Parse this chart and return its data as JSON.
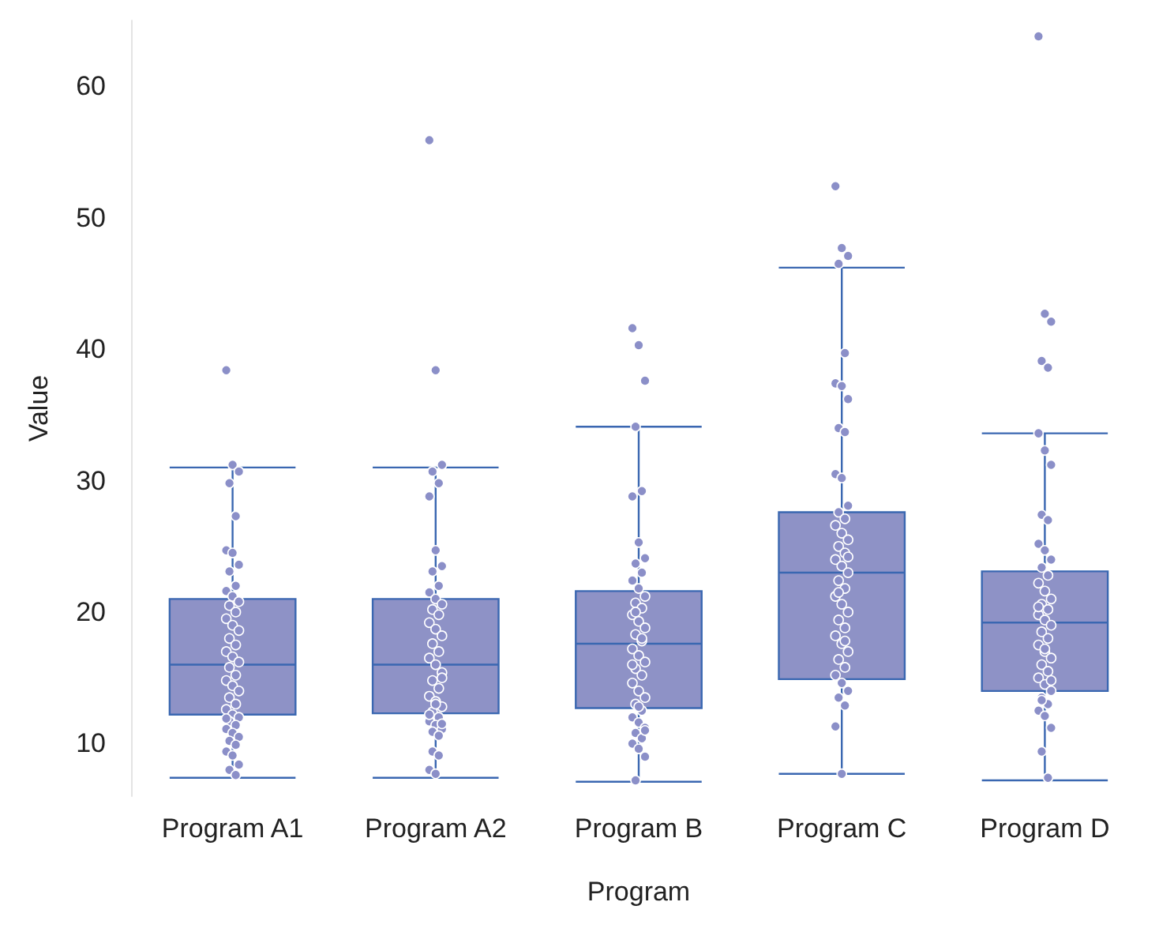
{
  "chart_data": {
    "type": "box",
    "xlabel": "Program",
    "ylabel": "Value",
    "categories": [
      "Program A1",
      "Program A2",
      "Program B",
      "Program C",
      "Program D"
    ],
    "ylim": [
      6,
      65
    ],
    "yticks": [
      10,
      20,
      30,
      40,
      50,
      60
    ],
    "grid": false,
    "series": [
      {
        "color": "#8e92c6",
        "boxes": [
          {
            "low": 7.4,
            "q1": 12.2,
            "median": 16.0,
            "q3": 21.0,
            "high": 31.0
          },
          {
            "low": 7.4,
            "q1": 12.3,
            "median": 16.0,
            "q3": 21.0,
            "high": 31.0
          },
          {
            "low": 7.1,
            "q1": 12.7,
            "median": 17.6,
            "q3": 21.6,
            "high": 34.1
          },
          {
            "low": 7.7,
            "q1": 14.9,
            "median": 23.0,
            "q3": 27.6,
            "high": 46.2
          },
          {
            "low": 7.2,
            "q1": 14.0,
            "median": 19.2,
            "q3": 23.1,
            "high": 33.6
          }
        ]
      },
      {
        "type": "scatter",
        "color": "#8b8fc8",
        "marker": "circle",
        "x": [
          "Program A1",
          "Program A1",
          "Program A1",
          "Program A1",
          "Program A1",
          "Program A1",
          "Program A1",
          "Program A1",
          "Program A1",
          "Program A1",
          "Program A1",
          "Program A1",
          "Program A1",
          "Program A1",
          "Program A1",
          "Program A1",
          "Program A1",
          "Program A1",
          "Program A1",
          "Program A1",
          "Program A1",
          "Program A1",
          "Program A1",
          "Program A1",
          "Program A1",
          "Program A1",
          "Program A1",
          "Program A1",
          "Program A1",
          "Program A1",
          "Program A1",
          "Program A1",
          "Program A1",
          "Program A1",
          "Program A1",
          "Program A1",
          "Program A1",
          "Program A1",
          "Program A1",
          "Program A1",
          "Program A1",
          "Program A1",
          "Program A1",
          "Program A1",
          "Program A1",
          "Program A1",
          "Program A2",
          "Program A2",
          "Program A2",
          "Program A2",
          "Program A2",
          "Program A2",
          "Program A2",
          "Program A2",
          "Program A2",
          "Program A2",
          "Program A2",
          "Program A2",
          "Program A2",
          "Program A2",
          "Program A2",
          "Program A2",
          "Program A2",
          "Program A2",
          "Program A2",
          "Program A2",
          "Program A2",
          "Program A2",
          "Program A2",
          "Program A2",
          "Program A2",
          "Program A2",
          "Program A2",
          "Program A2",
          "Program A2",
          "Program A2",
          "Program A2",
          "Program A2",
          "Program A2",
          "Program A2",
          "Program A2",
          "Program A2",
          "Program A2",
          "Program A2",
          "Program A2",
          "Program A2",
          "Program A2",
          "Program A2",
          "Program A2",
          "Program B",
          "Program B",
          "Program B",
          "Program B",
          "Program B",
          "Program B",
          "Program B",
          "Program B",
          "Program B",
          "Program B",
          "Program B",
          "Program B",
          "Program B",
          "Program B",
          "Program B",
          "Program B",
          "Program B",
          "Program B",
          "Program B",
          "Program B",
          "Program B",
          "Program B",
          "Program B",
          "Program B",
          "Program B",
          "Program B",
          "Program B",
          "Program B",
          "Program B",
          "Program B",
          "Program B",
          "Program B",
          "Program B",
          "Program B",
          "Program B",
          "Program B",
          "Program B",
          "Program B",
          "Program B",
          "Program B",
          "Program B",
          "Program B",
          "Program B",
          "Program B",
          "Program C",
          "Program C",
          "Program C",
          "Program C",
          "Program C",
          "Program C",
          "Program C",
          "Program C",
          "Program C",
          "Program C",
          "Program C",
          "Program C",
          "Program C",
          "Program C",
          "Program C",
          "Program C",
          "Program C",
          "Program C",
          "Program C",
          "Program C",
          "Program C",
          "Program C",
          "Program C",
          "Program C",
          "Program C",
          "Program C",
          "Program C",
          "Program C",
          "Program C",
          "Program C",
          "Program C",
          "Program C",
          "Program C",
          "Program C",
          "Program C",
          "Program C",
          "Program C",
          "Program C",
          "Program C",
          "Program C",
          "Program C",
          "Program C",
          "Program C",
          "Program C",
          "Program C",
          "Program D",
          "Program D",
          "Program D",
          "Program D",
          "Program D",
          "Program D",
          "Program D",
          "Program D",
          "Program D",
          "Program D",
          "Program D",
          "Program D",
          "Program D",
          "Program D",
          "Program D",
          "Program D",
          "Program D",
          "Program D",
          "Program D",
          "Program D",
          "Program D",
          "Program D",
          "Program D",
          "Program D",
          "Program D",
          "Program D",
          "Program D",
          "Program D",
          "Program D",
          "Program D",
          "Program D",
          "Program D",
          "Program D",
          "Program D",
          "Program D",
          "Program D",
          "Program D",
          "Program D",
          "Program D",
          "Program D",
          "Program D",
          "Program D",
          "Program D",
          "Program D"
        ],
        "values": [
          38.4,
          31.2,
          30.7,
          29.8,
          27.3,
          24.7,
          24.5,
          23.6,
          23.1,
          22.0,
          21.6,
          21.2,
          20.8,
          20.5,
          20.0,
          19.5,
          19.0,
          18.6,
          18.0,
          17.5,
          17.0,
          16.6,
          16.2,
          15.8,
          15.2,
          14.8,
          14.4,
          14.0,
          13.5,
          13.0,
          12.6,
          12.2,
          12.0,
          11.7,
          11.4,
          11.1,
          10.8,
          10.5,
          10.2,
          9.9,
          9.4,
          9.1,
          8.4,
          8.0,
          7.6,
          11.9,
          55.9,
          38.4,
          31.2,
          30.7,
          29.8,
          28.8,
          24.7,
          23.5,
          23.1,
          22.0,
          21.5,
          21.0,
          20.6,
          20.2,
          19.8,
          19.2,
          18.7,
          18.2,
          17.6,
          17.0,
          16.5,
          16.0,
          15.4,
          14.8,
          14.2,
          13.6,
          13.2,
          12.8,
          12.4,
          12.0,
          11.7,
          11.4,
          11.1,
          10.9,
          10.6,
          12.2,
          13.0,
          11.5,
          9.4,
          9.1,
          8.0,
          7.7,
          15.0,
          41.6,
          40.3,
          37.6,
          34.1,
          29.2,
          28.8,
          25.3,
          24.1,
          23.7,
          23.0,
          22.4,
          21.8,
          21.2,
          20.7,
          20.3,
          19.8,
          19.3,
          18.8,
          18.3,
          17.8,
          17.2,
          16.7,
          16.2,
          15.7,
          15.2,
          14.6,
          14.0,
          13.5,
          13.0,
          12.5,
          12.0,
          11.6,
          11.2,
          10.8,
          10.4,
          10.0,
          9.6,
          9.0,
          20.0,
          18.0,
          16.0,
          12.8,
          11.0,
          7.2,
          52.4,
          47.7,
          47.1,
          46.5,
          39.7,
          37.4,
          37.2,
          36.2,
          34.0,
          33.7,
          30.5,
          30.2,
          28.1,
          27.6,
          27.1,
          26.6,
          26.0,
          25.5,
          25.0,
          24.5,
          24.0,
          23.5,
          23.0,
          22.4,
          21.8,
          21.2,
          20.6,
          20.0,
          19.4,
          18.8,
          18.2,
          17.6,
          17.0,
          16.4,
          15.8,
          15.2,
          14.6,
          14.0,
          13.5,
          12.9,
          11.3,
          7.7,
          24.2,
          21.5,
          17.8,
          63.8,
          42.7,
          42.1,
          39.1,
          38.6,
          33.6,
          32.3,
          31.2,
          27.4,
          27.0,
          25.2,
          24.7,
          24.0,
          23.4,
          22.8,
          22.2,
          21.6,
          21.0,
          20.6,
          20.2,
          19.8,
          19.4,
          19.0,
          18.5,
          18.0,
          17.5,
          17.0,
          16.5,
          16.0,
          15.5,
          15.0,
          14.5,
          14.0,
          13.5,
          13.0,
          12.5,
          12.1,
          11.2,
          9.4,
          7.4,
          20.4,
          17.2,
          14.8,
          13.3
        ]
      }
    ]
  }
}
